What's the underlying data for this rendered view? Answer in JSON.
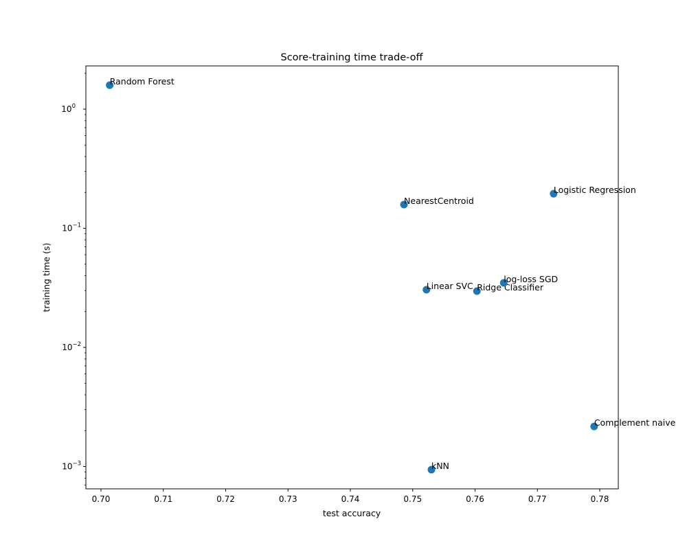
{
  "chart_data": {
    "type": "scatter",
    "title": "Score-training time trade-off",
    "xlabel": "test accuracy",
    "ylabel": "training time (s)",
    "xscale": "linear",
    "yscale": "log",
    "xlim": [
      0.696,
      0.783
    ],
    "ylim": [
      0.00066,
      2.3
    ],
    "grid": false,
    "legend": null,
    "marker_color": "#1f77b4",
    "x_ticks": [
      "0.70",
      "0.71",
      "0.72",
      "0.73",
      "0.74",
      "0.75",
      "0.76",
      "0.77",
      "0.78"
    ],
    "y_ticks": [
      "10^0",
      "10^-1",
      "10^-2",
      "10^-3"
    ],
    "points": [
      {
        "label": "Random Forest",
        "x": 0.7014,
        "y": 1.59
      },
      {
        "label": "NearestCentroid",
        "x": 0.7486,
        "y": 0.158
      },
      {
        "label": "Logistic Regression",
        "x": 0.7726,
        "y": 0.195
      },
      {
        "label": "Linear SVC",
        "x": 0.7522,
        "y": 0.0305
      },
      {
        "label": "Ridge Classifier",
        "x": 0.7603,
        "y": 0.0297
      },
      {
        "label": "log-loss SGD",
        "x": 0.7646,
        "y": 0.0348
      },
      {
        "label": "Complement naive",
        "x": 0.7791,
        "y": 0.00217
      },
      {
        "label": "kNN",
        "x": 0.753,
        "y": 0.00094
      }
    ]
  }
}
